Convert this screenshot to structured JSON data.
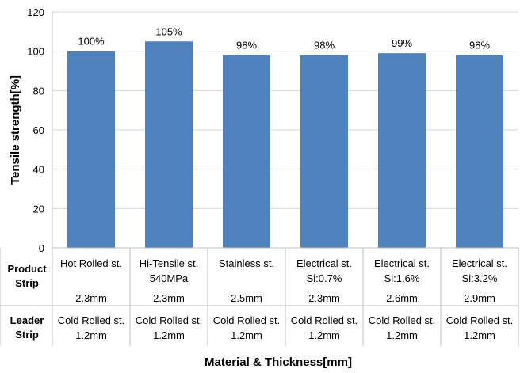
{
  "chart_data": {
    "type": "bar",
    "ylabel": "Tensile strength[%]",
    "xlabel": "Material & Thickness[mm]",
    "ylim": [
      0,
      120
    ],
    "yticks": [
      "0",
      "20",
      "40",
      "60",
      "80",
      "100",
      "120"
    ],
    "grid": true,
    "bar_color": "#4f81bd",
    "values": [
      100,
      105,
      98,
      98,
      99,
      98
    ],
    "data_labels": [
      "100%",
      "105%",
      "98%",
      "98%",
      "99%",
      "98%"
    ],
    "table": {
      "row_headers": [
        [
          "Product",
          "Strip"
        ],
        [
          "Leader",
          "Strip"
        ]
      ],
      "product_strip": [
        [
          "Hot Rolled st.",
          "",
          "2.3mm"
        ],
        [
          "Hi-Tensile st.",
          "540MPa",
          "2.3mm"
        ],
        [
          "Stainless st.",
          "",
          "2.5mm"
        ],
        [
          "Electrical st.",
          "Si:0.7%",
          "2.3mm"
        ],
        [
          "Electrical st.",
          "Si:1.6%",
          "2.6mm"
        ],
        [
          "Electrical st.",
          "Si:3.2%",
          "2.9mm"
        ]
      ],
      "leader_strip": [
        [
          "Cold Rolled st.",
          "1.2mm"
        ],
        [
          "Cold Rolled st.",
          "1.2mm"
        ],
        [
          "Cold Rolled st.",
          "1.2mm"
        ],
        [
          "Cold Rolled st.",
          "1.2mm"
        ],
        [
          "Cold Rolled st.",
          "1.2mm"
        ],
        [
          "Cold Rolled st.",
          "1.2mm"
        ]
      ]
    }
  }
}
